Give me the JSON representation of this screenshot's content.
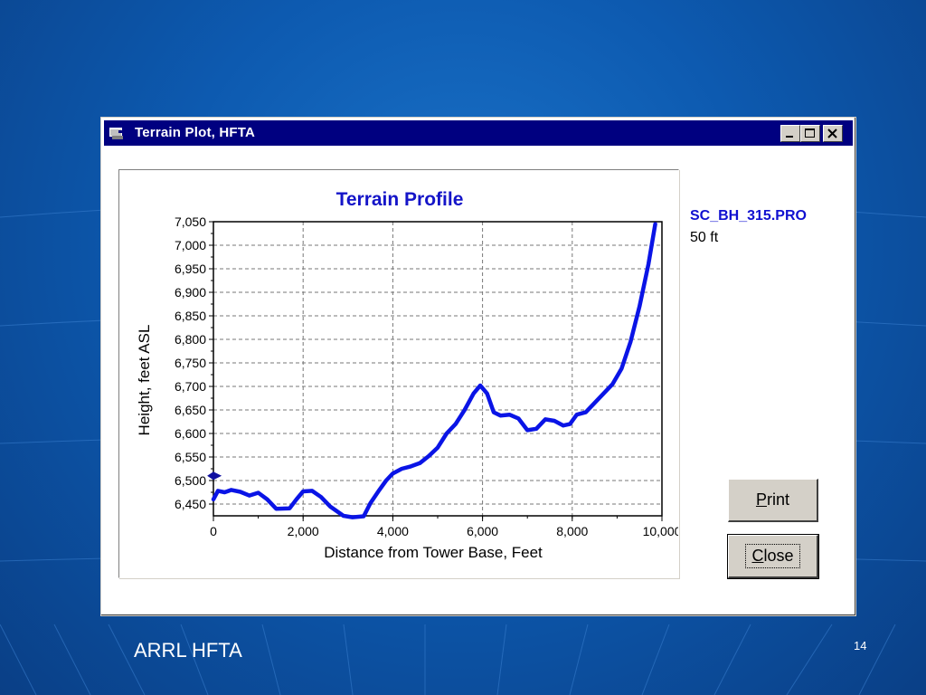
{
  "slide": {
    "footer": "ARRL HFTA",
    "page_number": "14"
  },
  "window": {
    "title": "Terrain Plot, HFTA",
    "minimize_icon": "minimize-icon",
    "maximize_icon": "maximize-icon",
    "close_icon": "close-icon"
  },
  "side_panel": {
    "file_name": "SC_BH_315.PRO",
    "height": "50 ft"
  },
  "buttons": {
    "print_accel": "P",
    "print_rest": "rint",
    "close_accel": "C",
    "close_rest": "lose"
  },
  "colors": {
    "series": "#0a14e6",
    "title": "#1414c8",
    "titlebar": "#000080"
  },
  "chart_data": {
    "type": "line",
    "title": "Terrain Profile",
    "xlabel": "Distance from Tower Base, Feet",
    "ylabel": "Height, feet ASL",
    "xlim": [
      0,
      10000
    ],
    "ylim": [
      6425,
      7050
    ],
    "grid": true,
    "x_ticks": [
      0,
      2000,
      4000,
      6000,
      8000,
      10000
    ],
    "x_tick_labels": [
      "0",
      "2,000",
      "4,000",
      "6,000",
      "8,000",
      "10,000"
    ],
    "y_ticks": [
      6450,
      6500,
      6550,
      6600,
      6650,
      6700,
      6750,
      6800,
      6850,
      6900,
      6950,
      7000,
      7050
    ],
    "y_tick_labels": [
      "6,450",
      "6,500",
      "6,550",
      "6,600",
      "6,650",
      "6,700",
      "6,750",
      "6,800",
      "6,850",
      "6,900",
      "6,950",
      "7,000",
      "7,050"
    ],
    "tower_marker": {
      "x": 0,
      "y": 6510
    },
    "series": [
      {
        "x": [
          0,
          100,
          250,
          400,
          600,
          800,
          1000,
          1200,
          1400,
          1700,
          1850,
          2000,
          2200,
          2400,
          2600,
          2900,
          3100,
          3350,
          3500,
          3700,
          3850,
          4000,
          4200,
          4400,
          4600,
          4800,
          5000,
          5200,
          5400,
          5600,
          5800,
          5950,
          6100,
          6250,
          6400,
          6600,
          6800,
          7000,
          7200,
          7400,
          7600,
          7800,
          7950,
          8100,
          8300,
          8500,
          8700,
          8900,
          9100,
          9300,
          9500,
          9700,
          9850
        ],
        "y": [
          6460,
          6478,
          6475,
          6480,
          6476,
          6468,
          6474,
          6460,
          6440,
          6441,
          6460,
          6477,
          6478,
          6465,
          6445,
          6425,
          6422,
          6424,
          6452,
          6480,
          6500,
          6515,
          6525,
          6530,
          6537,
          6552,
          6570,
          6600,
          6620,
          6650,
          6685,
          6702,
          6685,
          6645,
          6638,
          6640,
          6632,
          6607,
          6610,
          6630,
          6627,
          6617,
          6620,
          6640,
          6645,
          6665,
          6685,
          6705,
          6738,
          6795,
          6870,
          6960,
          7045
        ]
      }
    ]
  }
}
